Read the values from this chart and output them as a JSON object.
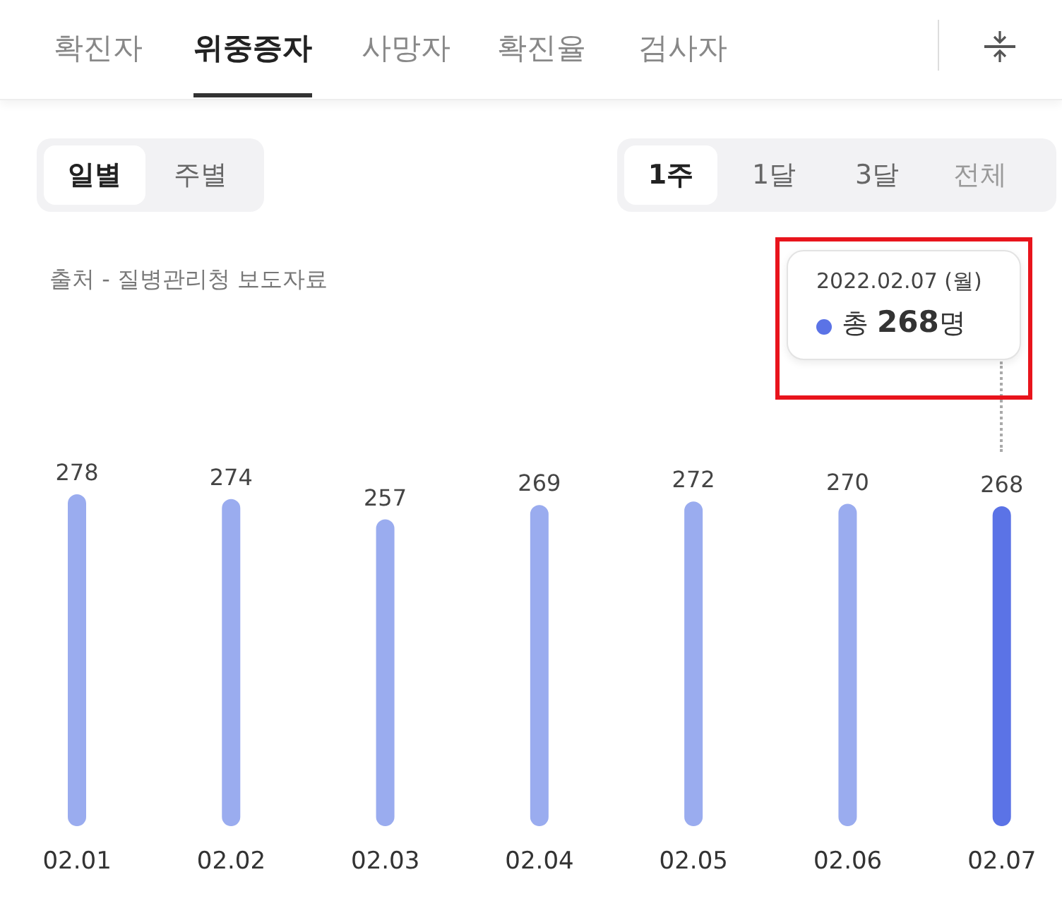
{
  "chart_data": {
    "type": "bar",
    "categories": [
      "02.01",
      "02.02",
      "02.03",
      "02.04",
      "02.05",
      "02.06",
      "02.07"
    ],
    "values": [
      278,
      274,
      257,
      269,
      272,
      270,
      268
    ],
    "colors": [
      "#9aacef",
      "#9aacef",
      "#9aacef",
      "#9aacef",
      "#9aacef",
      "#9aacef",
      "#5b73e6"
    ],
    "data_labels": true,
    "grid": false,
    "legend": false,
    "annotations": [
      "확진자",
      "위중증자",
      "사망자",
      "확진율",
      "검사자",
      "일별",
      "주별",
      "1주",
      "1달",
      "3달",
      "전체",
      "출처 - 질병관리청 보도자료",
      "2022.02.07 (월)",
      "총 268명"
    ]
  }
}
